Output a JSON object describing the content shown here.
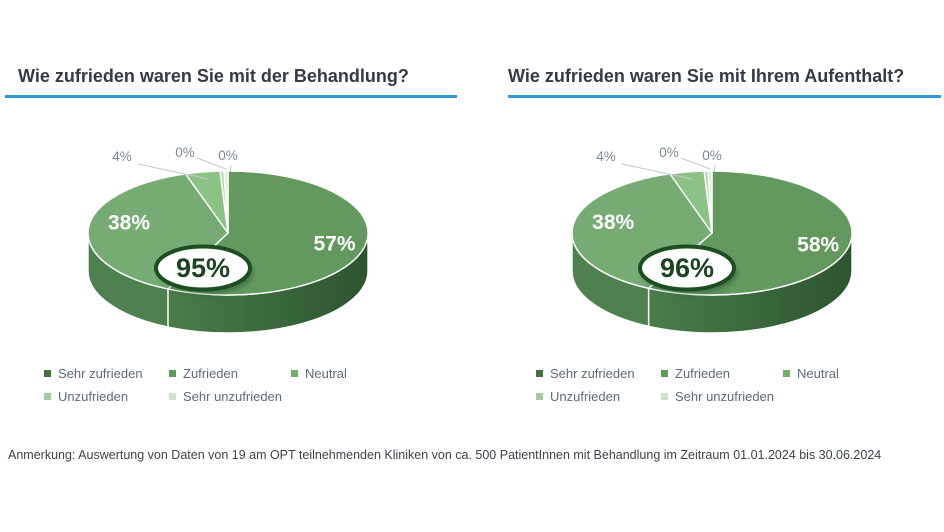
{
  "note": "Anmerkung: Auswertung von Daten von 19 am OPT teilnehmenden Kliniken von ca. 500 PatientInnen mit Behandlung im Zeitraum 01.01.2024 bis 30.06.2024",
  "legend": {
    "items": [
      {
        "label": "Sehr zufrieden",
        "color": "#447140"
      },
      {
        "label": "Zufrieden",
        "color": "#61995c"
      },
      {
        "label": "Neutral",
        "color": "#74af6a"
      },
      {
        "label": "Unzufrieden",
        "color": "#a2cb9e"
      },
      {
        "label": "Sehr unzufrieden",
        "color": "#cbe4c8"
      }
    ]
  },
  "colors": {
    "title_text": "#333b44",
    "title_underline": "#2f99d6",
    "slice_top": [
      "#63985e",
      "#76ab74",
      "#8dc287",
      "#b7dab2",
      "#dcecd8"
    ],
    "rim_light": "#4a7c49",
    "rim_dark": "#2d5530",
    "rim_mid": "#4f8150",
    "inside_label": "#ffffff",
    "outside_label": "#7e8894",
    "leader_line": "#c3c9cf",
    "badge_border": "#1e4d21",
    "badge_text": "#1c4420",
    "legend_text": "#5b6c7c",
    "note_text": "#3c434d"
  },
  "chart_data": [
    {
      "type": "pie",
      "style": "3d-pie",
      "title": "Wie zufrieden waren Sie mit der Behandlung?",
      "labels": [
        "Sehr zufrieden",
        "Zufrieden",
        "Neutral",
        "Unzufrieden",
        "Sehr unzufrieden"
      ],
      "values": [
        57,
        38,
        4,
        0,
        0
      ],
      "data_labels": [
        "57%",
        "38%",
        "4%",
        "0%",
        "0%"
      ],
      "center_label": "95%",
      "legend_position": "bottom"
    },
    {
      "type": "pie",
      "style": "3d-pie",
      "title": "Wie zufrieden waren Sie mit Ihrem Aufenthalt?",
      "labels": [
        "Sehr zufrieden",
        "Zufrieden",
        "Neutral",
        "Unzufrieden",
        "Sehr unzufrieden"
      ],
      "values": [
        58,
        38,
        4,
        0,
        0
      ],
      "data_labels": [
        "58%",
        "38%",
        "4%",
        "0%",
        "0%"
      ],
      "center_label": "96%",
      "legend_position": "bottom"
    }
  ]
}
